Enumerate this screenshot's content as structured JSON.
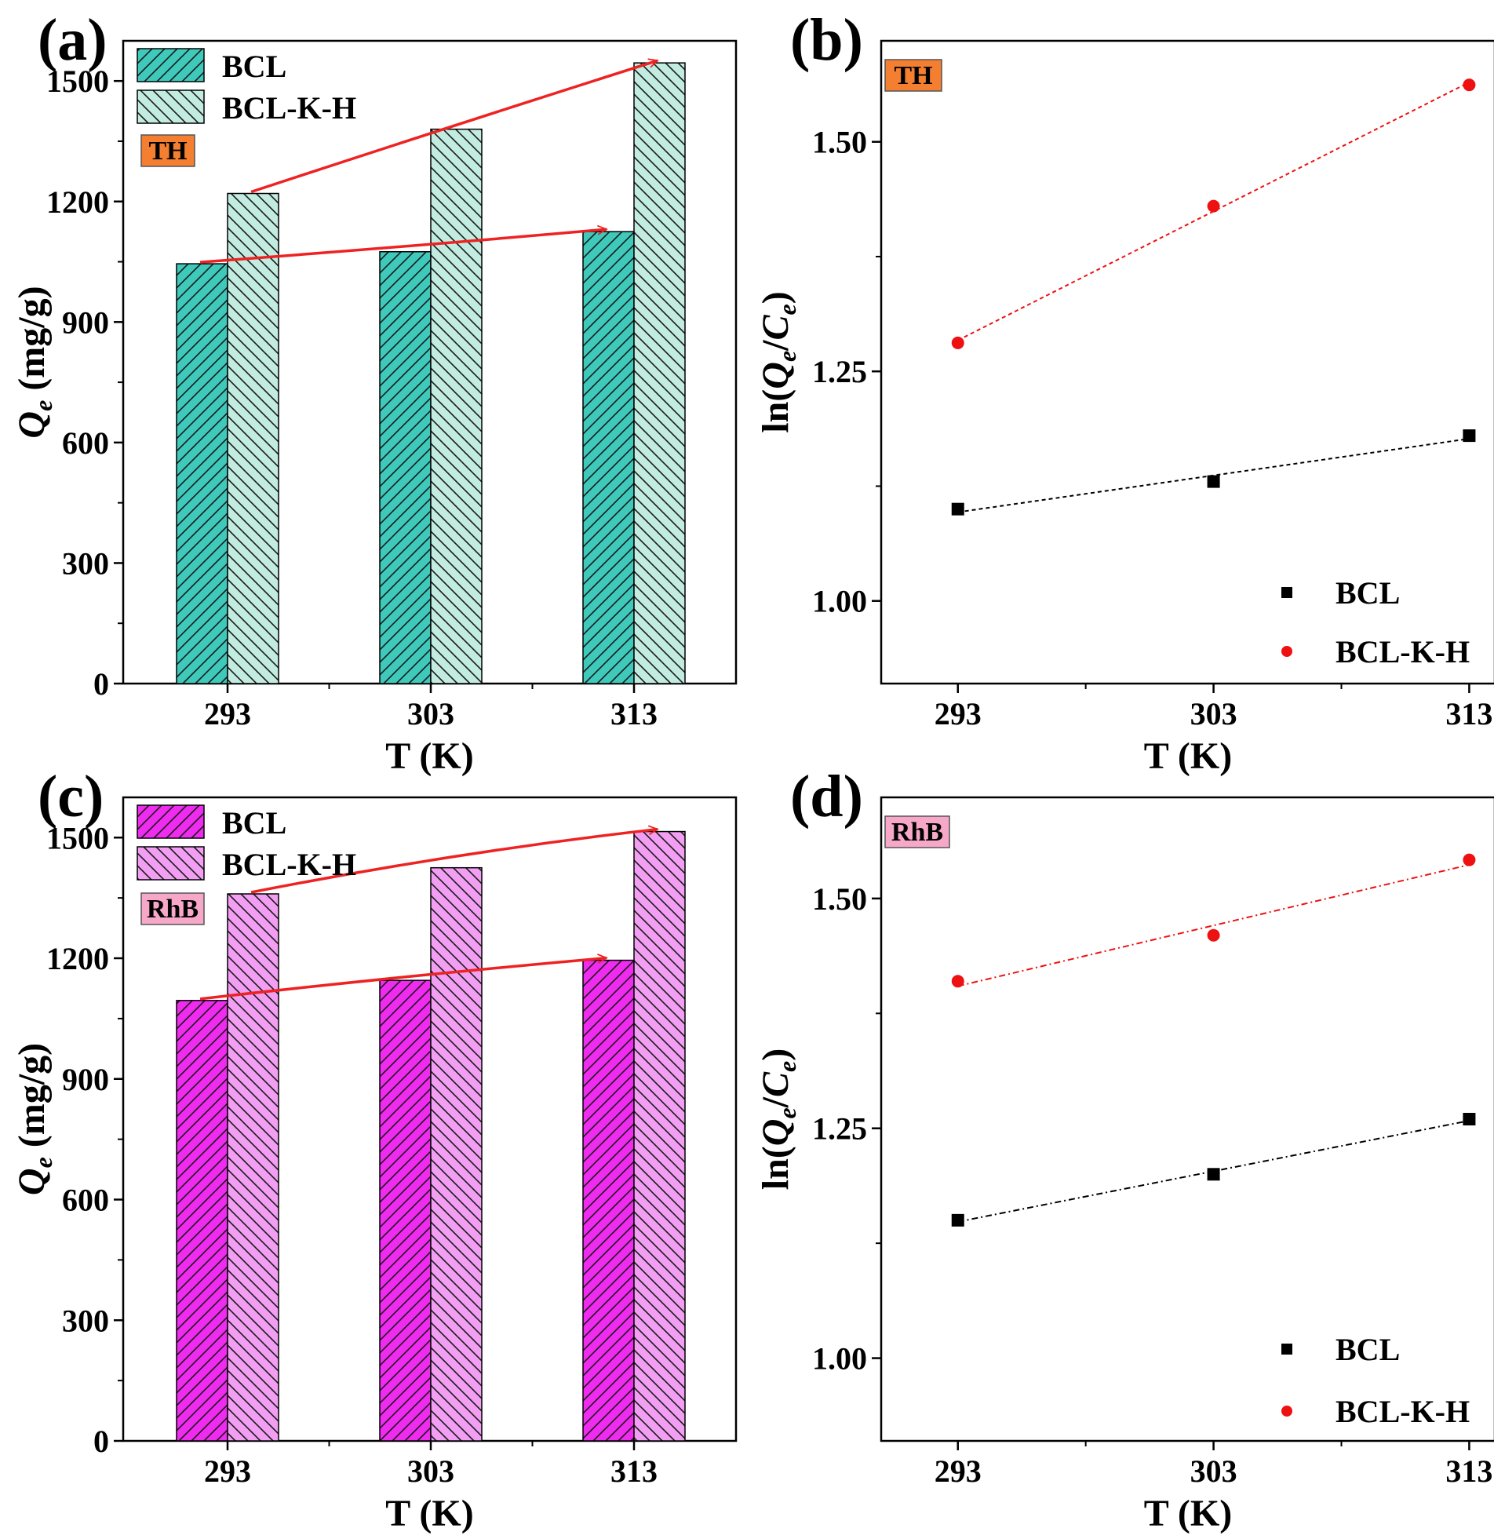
{
  "colors": {
    "th_bcl": "#3ec9bb",
    "th_bclkh": "#c2ece0",
    "rhb_bcl": "#ee2bee",
    "rhb_bclkh": "#f29ef2",
    "tag_th": "#f47f30",
    "tag_rhb": "#f7a8c8",
    "arrow": "#ee2222",
    "series_black": "#000000",
    "series_red": "#ee1111"
  },
  "chart_data": [
    {
      "id": "a",
      "panel_label": "(a)",
      "type": "bar",
      "tag": "TH",
      "categories": [
        "293",
        "303",
        "313"
      ],
      "series": [
        {
          "name": "BCL",
          "values": [
            1045,
            1075,
            1125
          ]
        },
        {
          "name": "BCL-K-H",
          "values": [
            1220,
            1380,
            1545
          ]
        }
      ],
      "xlabel": "T (K)",
      "ylabel_main": "Q",
      "ylabel_sub": "e",
      "ylabel_unit": " (mg/g)",
      "ylim": [
        0,
        1600
      ],
      "yticks": [
        "0",
        "300",
        "600",
        "900",
        "1200",
        "1500"
      ],
      "arrows": "increasing trend arrows over each series"
    },
    {
      "id": "b",
      "panel_label": "(b)",
      "type": "scatter",
      "tag": "TH",
      "x": [
        293,
        303,
        313
      ],
      "xticks": [
        "293",
        "303",
        "313"
      ],
      "series": [
        {
          "name": "BCL",
          "marker": "square",
          "values": [
            1.1,
            1.13,
            1.18
          ]
        },
        {
          "name": "BCL-K-H",
          "marker": "circle",
          "values": [
            1.281,
            1.43,
            1.562
          ]
        }
      ],
      "fit_lines": true,
      "xlabel": "T (K)",
      "ylabel_pre": "ln(",
      "ylabel_q": "Q",
      "ylabel_qsub": "e",
      "ylabel_slash": "/",
      "ylabel_c": "C",
      "ylabel_csub": "e",
      "ylabel_post": ")",
      "xlim": [
        290,
        314
      ],
      "ylim": [
        0.91,
        1.61
      ],
      "yticks": [
        "1.00",
        "1.25",
        "1.50"
      ]
    },
    {
      "id": "c",
      "panel_label": "(c)",
      "type": "bar",
      "tag": "RhB",
      "categories": [
        "293",
        "303",
        "313"
      ],
      "series": [
        {
          "name": "BCL",
          "values": [
            1095,
            1145,
            1195
          ]
        },
        {
          "name": "BCL-K-H",
          "values": [
            1360,
            1425,
            1515
          ]
        }
      ],
      "xlabel": "T (K)",
      "ylabel_main": "Q",
      "ylabel_sub": "e",
      "ylabel_unit": " (mg/g)",
      "ylim": [
        0,
        1600
      ],
      "yticks": [
        "0",
        "300",
        "600",
        "900",
        "1200",
        "1500"
      ],
      "arrows": "increasing trend arrows over each series"
    },
    {
      "id": "d",
      "panel_label": "(d)",
      "type": "scatter",
      "tag": "RhB",
      "x": [
        293,
        303,
        313
      ],
      "xticks": [
        "293",
        "303",
        "313"
      ],
      "series": [
        {
          "name": "BCL",
          "marker": "square",
          "values": [
            1.15,
            1.2,
            1.26
          ]
        },
        {
          "name": "BCL-K-H",
          "marker": "circle",
          "values": [
            1.41,
            1.46,
            1.542
          ]
        }
      ],
      "fit_lines": true,
      "xlabel": "T (K)",
      "ylabel_pre": "ln(",
      "ylabel_q": "Q",
      "ylabel_qsub": "e",
      "ylabel_slash": "/",
      "ylabel_c": "C",
      "ylabel_csub": "e",
      "ylabel_post": ")",
      "xlim": [
        290,
        314
      ],
      "ylim": [
        0.91,
        1.61
      ],
      "yticks": [
        "1.00",
        "1.25",
        "1.50"
      ]
    }
  ]
}
